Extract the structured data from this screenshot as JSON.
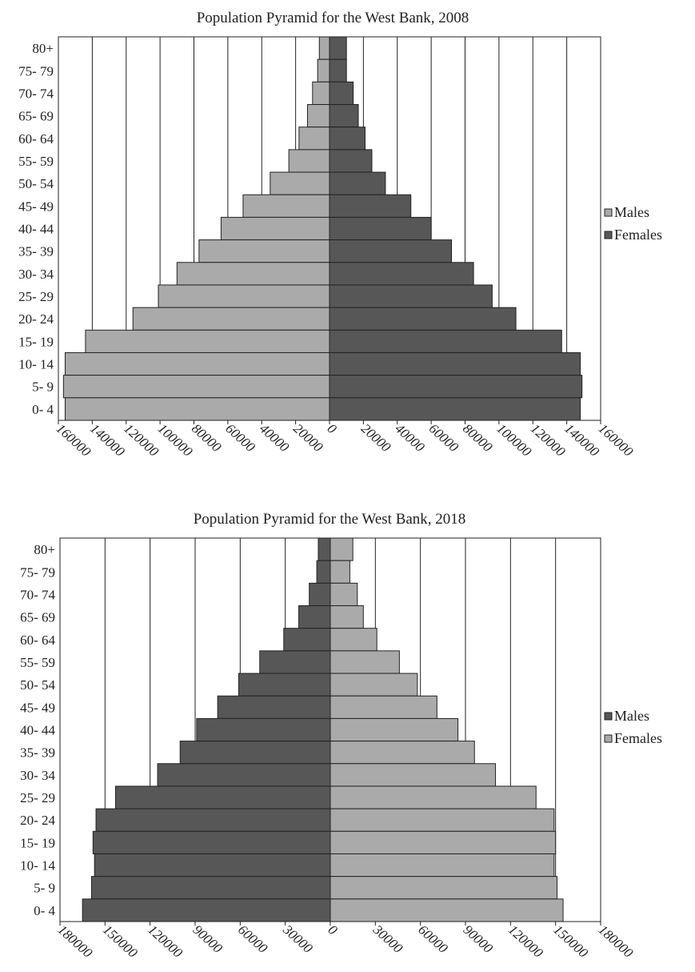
{
  "chart_data": [
    {
      "type": "bar",
      "title": "Population Pyramid for the West Bank, 2008",
      "xlabel": "",
      "ylabel": "",
      "xlim": [
        -160000,
        160000
      ],
      "tick_labels": [
        "160000",
        "140000",
        "120000",
        "100000",
        "80000",
        "60000",
        "40000",
        "20000",
        "0",
        "20000",
        "40000",
        "60000",
        "80000",
        "100000",
        "120000",
        "140000",
        "160000"
      ],
      "categories": [
        "80+",
        "75- 79",
        "70- 74",
        "65- 69",
        "60- 64",
        "55- 59",
        "50- 54",
        "45- 49",
        "40- 44",
        "35- 39",
        "30- 34",
        "25- 29",
        "20- 24",
        "15- 19",
        "10- 14",
        "5- 9",
        "0- 4"
      ],
      "series": [
        {
          "name": "Males",
          "side": "left",
          "color": "#aaaaaa",
          "values": [
            6000,
            7000,
            10000,
            13000,
            18000,
            24000,
            35000,
            51000,
            64000,
            77000,
            90000,
            101000,
            116000,
            144000,
            156000,
            157000,
            156000
          ]
        },
        {
          "name": "Females",
          "side": "right",
          "color": "#575757",
          "values": [
            10000,
            10000,
            14000,
            17000,
            21000,
            25000,
            33000,
            48000,
            60000,
            72000,
            85000,
            96000,
            110000,
            137000,
            148000,
            149000,
            148000
          ]
        }
      ],
      "legend": "right",
      "grid": true
    },
    {
      "type": "bar",
      "title": "Population Pyramid for the West Bank, 2018",
      "xlabel": "",
      "ylabel": "",
      "xlim": [
        -180000,
        180000
      ],
      "tick_labels": [
        "180000",
        "150000",
        "120000",
        "90000",
        "60000",
        "30000",
        "0",
        "30000",
        "60000",
        "90000",
        "120000",
        "150000",
        "180000"
      ],
      "categories": [
        "80+",
        "75- 79",
        "70- 74",
        "65- 69",
        "60- 64",
        "55- 59",
        "50- 54",
        "45- 49",
        "40- 44",
        "35- 39",
        "30- 34",
        "25- 29",
        "20- 24",
        "15- 19",
        "10- 14",
        "5- 9",
        "0- 4"
      ],
      "series": [
        {
          "name": "Males",
          "side": "left",
          "color": "#575757",
          "values": [
            8000,
            9000,
            14000,
            21000,
            31000,
            47000,
            61000,
            75000,
            89000,
            100000,
            115000,
            143000,
            156000,
            158000,
            157000,
            159000,
            165000
          ]
        },
        {
          "name": "Females",
          "side": "right",
          "color": "#aaaaaa",
          "values": [
            15000,
            13000,
            18000,
            22000,
            31000,
            46000,
            58000,
            71000,
            85000,
            96000,
            110000,
            137000,
            149000,
            150000,
            149000,
            151000,
            155000
          ]
        }
      ],
      "legend": "right",
      "grid": true
    }
  ]
}
